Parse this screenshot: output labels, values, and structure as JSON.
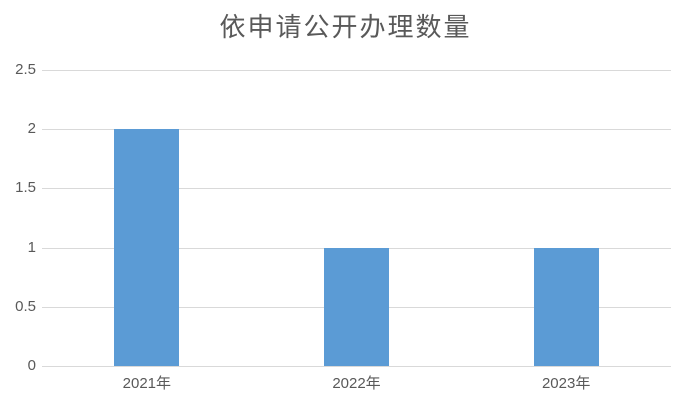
{
  "chart_data": {
    "type": "bar",
    "title": "依申请公开办理数量",
    "categories": [
      "2021年",
      "2022年",
      "2023年"
    ],
    "values": [
      2,
      1,
      1
    ],
    "xlabel": "",
    "ylabel": "",
    "ylim": [
      0,
      2.5
    ],
    "ytick_step": 0.5,
    "ytick_labels": [
      "0",
      "0.5",
      "1",
      "1.5",
      "2",
      "2.5"
    ],
    "grid": true,
    "legend": "none",
    "colors": {
      "bar": "#5b9bd5",
      "gridline": "#d9d9d9",
      "axis_line": "#d9d9d9",
      "text": "#595959",
      "background": "#ffffff"
    }
  }
}
